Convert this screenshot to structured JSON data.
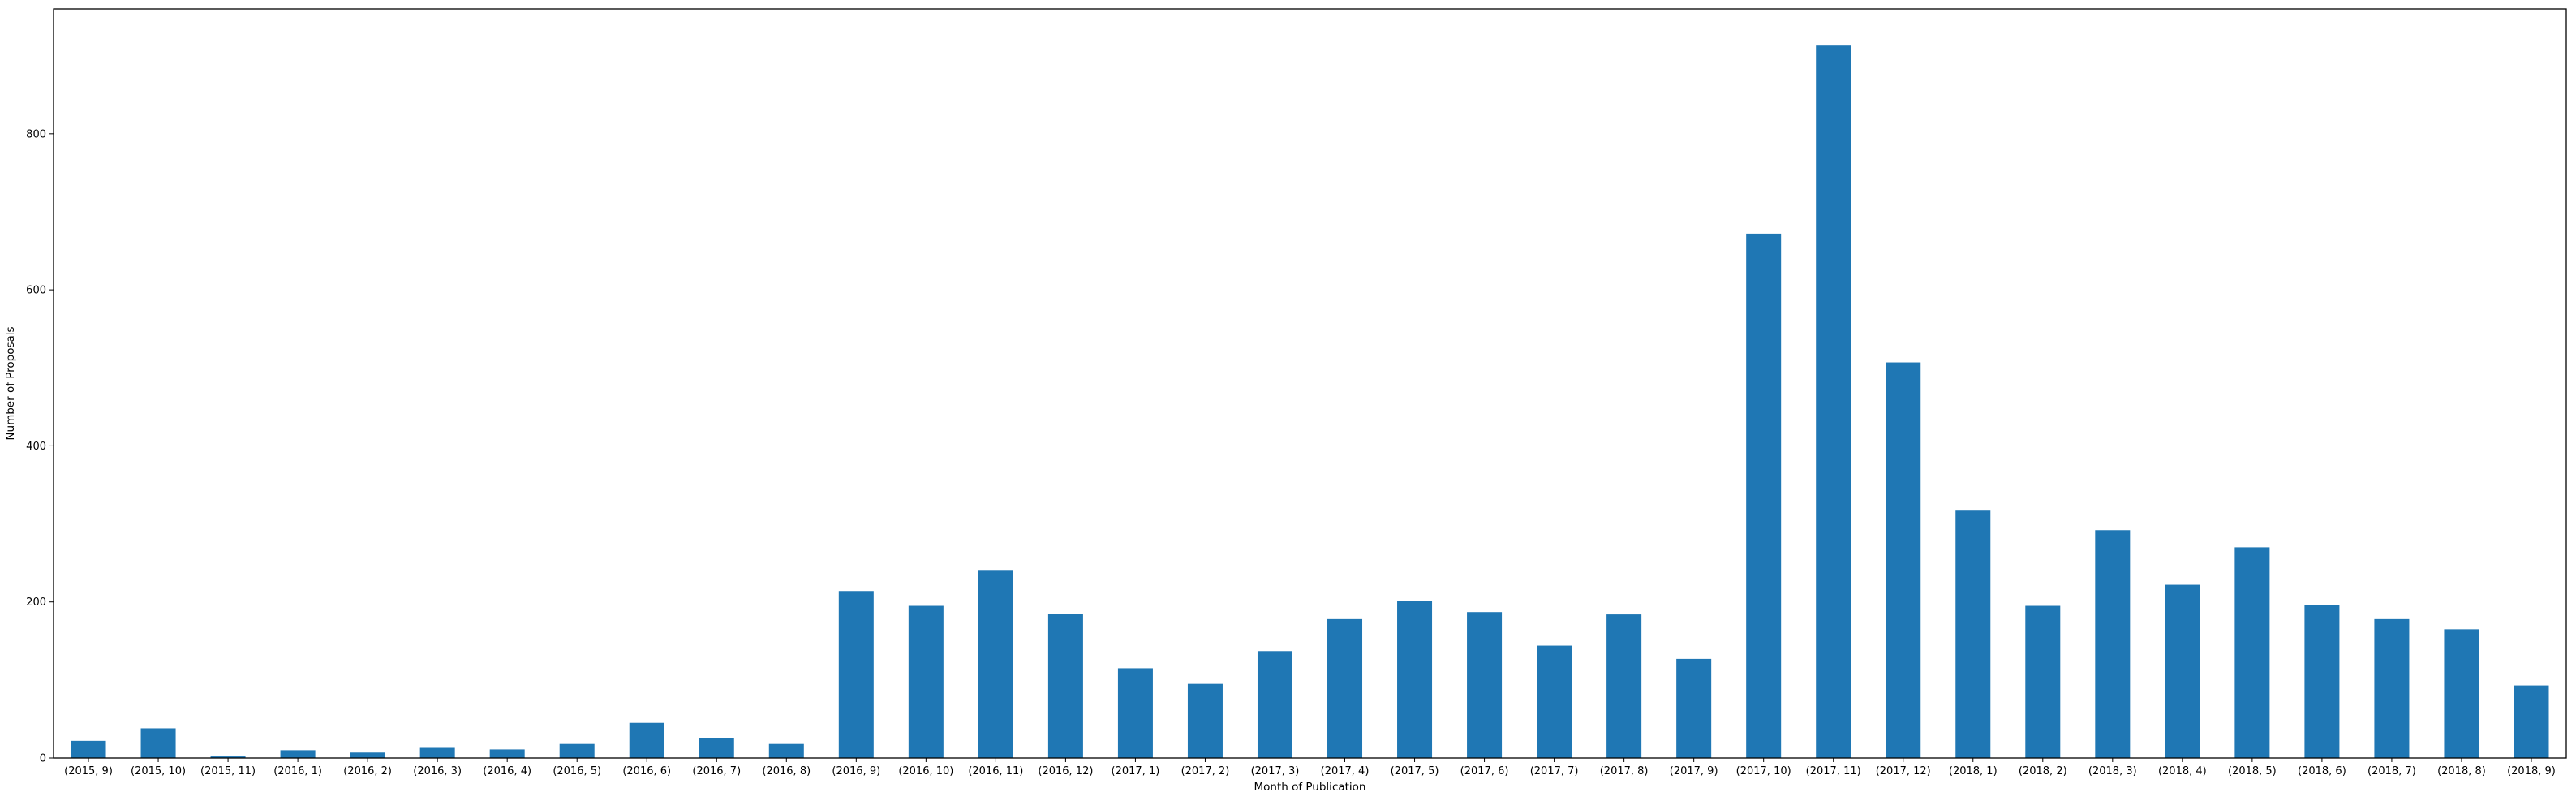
{
  "chart_data": {
    "type": "bar",
    "title": "",
    "xlabel": "Month of Publication",
    "ylabel": "Number of Proposals",
    "ylim": [
      0,
      960
    ],
    "yticks": [
      0,
      200,
      400,
      600,
      800
    ],
    "grid": false,
    "legend": "none",
    "bar_color": "#1f77b4",
    "categories": [
      "(2015, 9)",
      "(2015, 10)",
      "(2015, 11)",
      "(2016, 1)",
      "(2016, 2)",
      "(2016, 3)",
      "(2016, 4)",
      "(2016, 5)",
      "(2016, 6)",
      "(2016, 7)",
      "(2016, 8)",
      "(2016, 9)",
      "(2016, 10)",
      "(2016, 11)",
      "(2016, 12)",
      "(2017, 1)",
      "(2017, 2)",
      "(2017, 3)",
      "(2017, 4)",
      "(2017, 5)",
      "(2017, 6)",
      "(2017, 7)",
      "(2017, 8)",
      "(2017, 9)",
      "(2017, 10)",
      "(2017, 11)",
      "(2017, 12)",
      "(2018, 1)",
      "(2018, 2)",
      "(2018, 3)",
      "(2018, 4)",
      "(2018, 5)",
      "(2018, 6)",
      "(2018, 7)",
      "(2018, 8)",
      "(2018, 9)"
    ],
    "values": [
      22,
      38,
      2,
      10,
      7,
      13,
      11,
      18,
      45,
      26,
      18,
      214,
      195,
      241,
      185,
      115,
      95,
      137,
      178,
      201,
      187,
      144,
      184,
      127,
      672,
      913,
      507,
      317,
      195,
      292,
      222,
      270,
      196,
      178,
      165,
      93
    ]
  }
}
